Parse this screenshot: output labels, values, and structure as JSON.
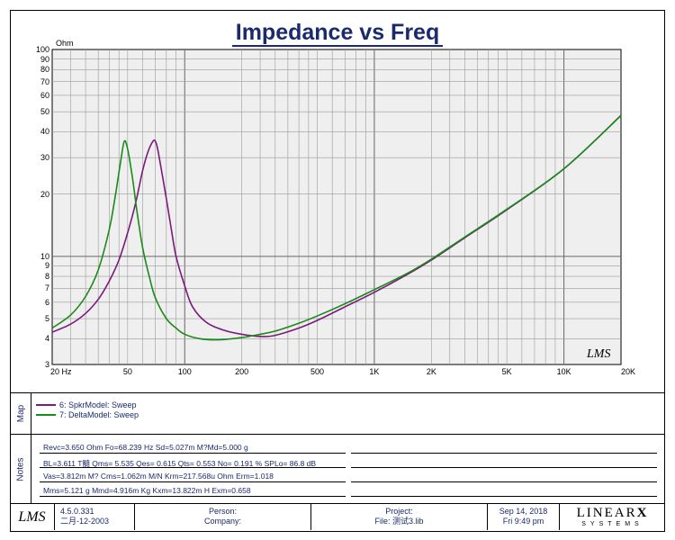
{
  "title": "Impedance vs Freq",
  "chart_data": {
    "type": "line",
    "title": "Impedance vs Freq",
    "ylabel": "Ohm",
    "xlabel": "",
    "x_scale": "log",
    "y_scale": "log",
    "xlim": [
      20,
      20000
    ],
    "ylim": [
      3,
      100
    ],
    "x_ticks": [
      {
        "v": 20,
        "label": "20 Hz"
      },
      {
        "v": 50,
        "label": "50"
      },
      {
        "v": 100,
        "label": "100"
      },
      {
        "v": 200,
        "label": "200"
      },
      {
        "v": 500,
        "label": "500"
      },
      {
        "v": 1000,
        "label": "1K"
      },
      {
        "v": 2000,
        "label": "2K"
      },
      {
        "v": 5000,
        "label": "5K"
      },
      {
        "v": 10000,
        "label": "10K"
      },
      {
        "v": 20000,
        "label": "20K"
      }
    ],
    "y_ticks": [
      {
        "v": 100,
        "label": "100"
      },
      {
        "v": 90,
        "label": "90"
      },
      {
        "v": 80,
        "label": "80"
      },
      {
        "v": 70,
        "label": "70"
      },
      {
        "v": 60,
        "label": "60"
      },
      {
        "v": 50,
        "label": "50"
      },
      {
        "v": 40,
        "label": "40"
      },
      {
        "v": 30,
        "label": "30"
      },
      {
        "v": 20,
        "label": "20"
      },
      {
        "v": 10,
        "label": "10"
      },
      {
        "v": 9,
        "label": "9"
      },
      {
        "v": 8,
        "label": "8"
      },
      {
        "v": 7,
        "label": "7"
      },
      {
        "v": 6,
        "label": "6"
      },
      {
        "v": 5,
        "label": "5"
      },
      {
        "v": 4,
        "label": "4"
      },
      {
        "v": 3,
        "label": "3"
      }
    ],
    "grid": true,
    "series": [
      {
        "name": "6: SpkrModel: Sweep",
        "color": "#7a1a7a",
        "x": [
          20,
          25,
          30,
          35,
          40,
          45,
          50,
          55,
          60,
          64,
          68,
          70,
          72,
          76,
          80,
          85,
          90,
          100,
          110,
          130,
          160,
          200,
          250,
          300,
          400,
          500,
          700,
          1000,
          1500,
          2000,
          3000,
          5000,
          10000,
          20000
        ],
        "y": [
          4.3,
          4.7,
          5.3,
          6.2,
          7.6,
          9.6,
          13.0,
          18.0,
          26.0,
          32.0,
          36.0,
          36.0,
          33.0,
          25.0,
          19.0,
          13.5,
          10.0,
          7.2,
          5.7,
          4.8,
          4.4,
          4.2,
          4.1,
          4.15,
          4.5,
          4.9,
          5.7,
          6.7,
          8.2,
          9.6,
          12.3,
          16.8,
          26.5,
          48.0
        ]
      },
      {
        "name": "7: DeltaModel: Sweep",
        "color": "#1a8a1a",
        "x": [
          20,
          25,
          30,
          35,
          40,
          43,
          46,
          48,
          50,
          53,
          56,
          60,
          65,
          70,
          80,
          90,
          100,
          120,
          150,
          200,
          250,
          300,
          400,
          500,
          700,
          1000,
          1500,
          2000,
          3000,
          5000,
          10000,
          20000
        ],
        "y": [
          4.5,
          5.2,
          6.4,
          8.6,
          13.5,
          19.5,
          29.0,
          36.0,
          33.0,
          24.0,
          16.5,
          11.0,
          8.0,
          6.3,
          5.0,
          4.5,
          4.2,
          4.0,
          3.95,
          4.05,
          4.2,
          4.35,
          4.75,
          5.15,
          5.9,
          6.9,
          8.3,
          9.7,
          12.4,
          16.9,
          26.5,
          48.0
        ]
      }
    ]
  },
  "legend_panel": {
    "label": "Map",
    "items": [
      {
        "text": "6: SpkrModel: Sweep",
        "color": "#7a1a7a"
      },
      {
        "text": "7: DeltaModel: Sweep",
        "color": "#1a8a1a"
      }
    ]
  },
  "notes_panel": {
    "label": "Notes",
    "lines": [
      "Revc=3.650 Ohm  Fo=68.239 Hz  Sd=5.027m M?Md=5.000 g",
      "BL=3.611 T髓  Qms= 5.535  Qes= 0.615  Qts= 0.553  No= 0.191 %  SPLo= 86.8 dB",
      "Vas=3.812m M? Cms=1.062m M/N  Krm=217.568u Ohm  Erm=1.018",
      "Mms=5.121 g  Mmd=4.916m Kg  Kxm=13.822m H  Exm=0.658"
    ]
  },
  "footer": {
    "logo": "LMS",
    "version": "4.5.0.331",
    "date_cn": "二月-12-2003",
    "person_label": "Person:",
    "company_label": "Company:",
    "project_label": "Project:",
    "file_label": "File: 测试3.lib",
    "date": "Sep 14, 2018",
    "time": "Fri  9:49 pm",
    "brand_top": "LINEAR",
    "brand_x": "X",
    "brand_bottom": "SYSTEMS"
  },
  "watermark": "LMS"
}
